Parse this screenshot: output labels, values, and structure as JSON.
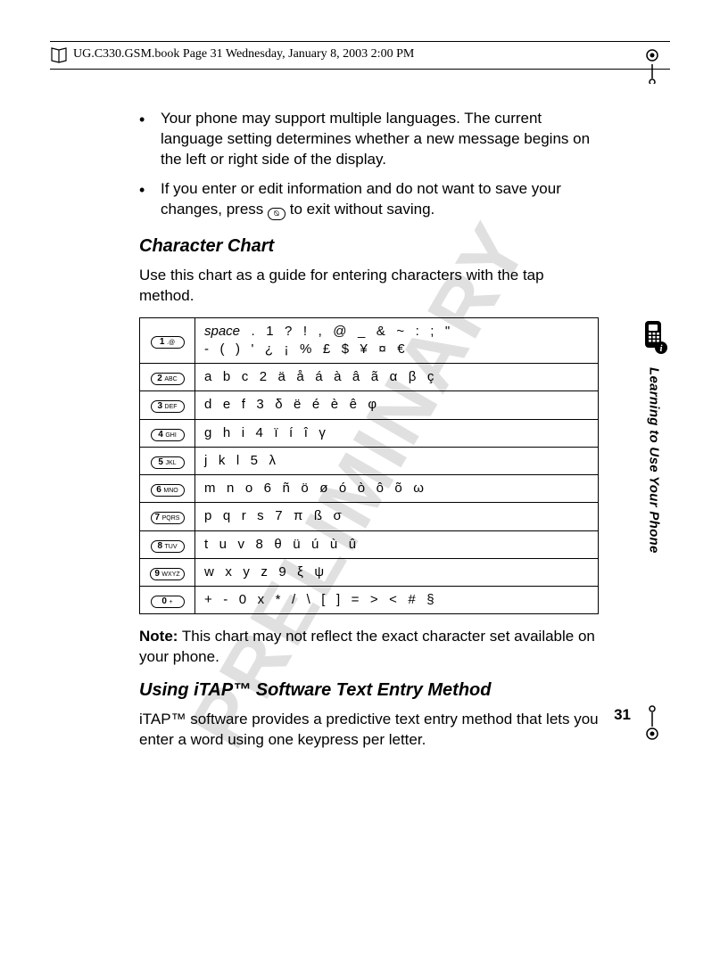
{
  "header": {
    "text": "UG.C330.GSM.book  Page 31  Wednesday, January 8, 2003  2:00 PM"
  },
  "watermark": "PRELIMINARY",
  "bullets": [
    "Your phone may support multiple languages. The current language setting determines whether a new message begins on the left or right side of the display.",
    "If you enter or edit information and do not want to save your changes, press ⌨ to exit without saving."
  ],
  "section1_title": "Character Chart",
  "section1_intro": "Use this chart as a guide for entering characters with the tap method.",
  "char_chart": {
    "rows": [
      {
        "key_num": "1",
        "key_sub": ".@",
        "chars": "space   .   1   ?   !   ,   @   _   &   ~   :   ;   \"\n-   (   )   '   ¿   ¡   %   £   $   ¥   ¤   €",
        "italic_first": true
      },
      {
        "key_num": "2",
        "key_sub": "ABC",
        "chars": "a   b   c   2   ä   å   á   à   â   ã   α   β   ç"
      },
      {
        "key_num": "3",
        "key_sub": "DEF",
        "chars": "d   e   f   3   δ   ë   é   è   ê   φ"
      },
      {
        "key_num": "4",
        "key_sub": "GHI",
        "chars": "g   h   i   4   ï   í   î   γ"
      },
      {
        "key_num": "5",
        "key_sub": "JKL",
        "chars": "j   k   l   5   λ"
      },
      {
        "key_num": "6",
        "key_sub": "MNO",
        "chars": "m   n   o   6   ñ   ö   ø   ó   ò   ô   õ   ω"
      },
      {
        "key_num": "7",
        "key_sub": "PQRS",
        "chars": "p   q   r   s   7   π   ß   σ"
      },
      {
        "key_num": "8",
        "key_sub": "TUV",
        "chars": "t   u   v   8   θ   ü   ú   ù   û"
      },
      {
        "key_num": "9",
        "key_sub": "WXYZ",
        "chars": "w   x   y   z   9   ξ   ψ"
      },
      {
        "key_num": "0",
        "key_sub": "+",
        "chars": "+   -   0   x   *   /   \\   [   ]   =   >   <   #   §"
      }
    ]
  },
  "note_label": "Note:",
  "note_text": " This chart may not reflect the exact character set available on your phone.",
  "section2_title": "Using iTAP™ Software Text Entry Method",
  "section2_text": "iTAP™ software provides a predictive text entry method that lets you enter a word using one keypress per letter.",
  "side_label": "Learning to Use Your Phone",
  "page_number": "31"
}
